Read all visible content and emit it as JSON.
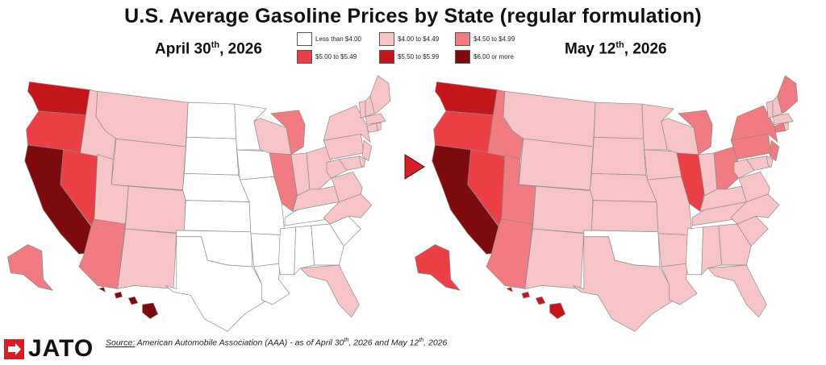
{
  "title": "U.S. Average Gasoline Prices by State (regular formulation)",
  "maps": [
    {
      "label_main": "April 30",
      "label_sup": "th",
      "label_year": ", 2026"
    },
    {
      "label_main": "May 12",
      "label_sup": "th",
      "label_year": ", 2026"
    }
  ],
  "legend": [
    {
      "label": "Less than $4.00",
      "color": "#ffffff"
    },
    {
      "label": "$4.00 to $4.49",
      "color": "#f7c5c7"
    },
    {
      "label": "$4.50 to $4.99",
      "color": "#f07b80"
    },
    {
      "label": "$5.00 to $5.49",
      "color": "#ea3f45"
    },
    {
      "label": "$5.50 to $5.99",
      "color": "#c3161d"
    },
    {
      "label": "$6.00 or more",
      "color": "#7d0a0d"
    }
  ],
  "colors": {
    "arrow": "#d41f26",
    "border": "#8a8a8a",
    "logo": "#d41f26"
  },
  "source": {
    "head": "Source:",
    "text1": " American Automobile Association (AAA) - as of April 30",
    "sup1": "th",
    "text2": ", 2026 and May 12",
    "sup2": "th",
    "text3": ", 2026"
  },
  "logo": {
    "text": "JATO",
    "icon": "jato-arrow-icon"
  },
  "states": [
    {
      "code": "WA",
      "april": 4,
      "may": 4
    },
    {
      "code": "OR",
      "april": 3,
      "may": 3
    },
    {
      "code": "CA",
      "april": 5,
      "may": 5
    },
    {
      "code": "NV",
      "april": 3,
      "may": 3
    },
    {
      "code": "ID",
      "april": 1,
      "may": 2
    },
    {
      "code": "MT",
      "april": 1,
      "may": 1
    },
    {
      "code": "WY",
      "april": 1,
      "may": 1
    },
    {
      "code": "UT",
      "april": 1,
      "may": 2
    },
    {
      "code": "AZ",
      "april": 2,
      "may": 2
    },
    {
      "code": "CO",
      "april": 1,
      "may": 1
    },
    {
      "code": "NM",
      "april": 1,
      "may": 1
    },
    {
      "code": "ND",
      "april": 0,
      "may": 1
    },
    {
      "code": "SD",
      "april": 0,
      "may": 1
    },
    {
      "code": "NE",
      "april": 0,
      "may": 1
    },
    {
      "code": "KS",
      "april": 0,
      "may": 1
    },
    {
      "code": "OK",
      "april": 0,
      "may": 0
    },
    {
      "code": "TX",
      "april": 0,
      "may": 1
    },
    {
      "code": "MN",
      "april": 0,
      "may": 1
    },
    {
      "code": "IA",
      "april": 0,
      "may": 1
    },
    {
      "code": "MO",
      "april": 0,
      "may": 1
    },
    {
      "code": "AR",
      "april": 0,
      "may": 1
    },
    {
      "code": "LA",
      "april": 0,
      "may": 1
    },
    {
      "code": "WI",
      "april": 1,
      "may": 1
    },
    {
      "code": "IL",
      "april": 2,
      "may": 3
    },
    {
      "code": "MI",
      "april": 2,
      "may": 2
    },
    {
      "code": "IN",
      "april": 1,
      "may": 1
    },
    {
      "code": "OH",
      "april": 1,
      "may": 2
    },
    {
      "code": "KY",
      "april": 1,
      "may": 1
    },
    {
      "code": "TN",
      "april": 0,
      "may": 1
    },
    {
      "code": "MS",
      "april": 0,
      "may": 0
    },
    {
      "code": "AL",
      "april": 0,
      "may": 1
    },
    {
      "code": "GA",
      "april": 0,
      "may": 1
    },
    {
      "code": "FL",
      "april": 1,
      "may": 1
    },
    {
      "code": "SC",
      "april": 0,
      "may": 1
    },
    {
      "code": "NC",
      "april": 1,
      "may": 1
    },
    {
      "code": "VA",
      "april": 1,
      "may": 1
    },
    {
      "code": "WV",
      "april": 1,
      "may": 1
    },
    {
      "code": "PA",
      "april": 1,
      "may": 2
    },
    {
      "code": "NY",
      "april": 1,
      "may": 2
    },
    {
      "code": "NJ",
      "april": 1,
      "may": 2
    },
    {
      "code": "MD",
      "april": 1,
      "may": 1
    },
    {
      "code": "DE",
      "april": 1,
      "may": 1
    },
    {
      "code": "CT",
      "april": 1,
      "may": 2
    },
    {
      "code": "RI",
      "april": 1,
      "may": 1
    },
    {
      "code": "MA",
      "april": 1,
      "may": 1
    },
    {
      "code": "VT",
      "april": 1,
      "may": 1
    },
    {
      "code": "NH",
      "april": 1,
      "may": 1
    },
    {
      "code": "ME",
      "april": 1,
      "may": 2
    },
    {
      "code": "AK",
      "april": 2,
      "may": 3
    },
    {
      "code": "HI",
      "april": 5,
      "may": 4
    }
  ]
}
